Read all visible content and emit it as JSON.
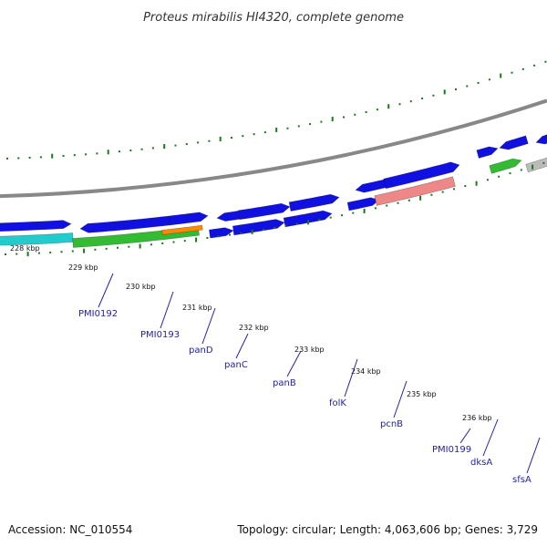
{
  "title": "Proteus mirabilis HI4320, complete genome",
  "footer": {
    "accession": "Accession: NC_010554",
    "summary": "Topology: circular; Length: 4,063,606 bp; Genes: 3,729"
  },
  "ticks": [
    "228 kbp",
    "229 kbp",
    "230 kbp",
    "231 kbp",
    "232 kbp",
    "233 kbp",
    "234 kbp",
    "235 kbp",
    "236 kbp"
  ],
  "genes": [
    "PMI0192",
    "PMI0193",
    "panD",
    "panC",
    "panB",
    "folK",
    "pcnB",
    "PMI0199",
    "dksA",
    "sfsA"
  ],
  "colors": {
    "backbone": "#888888",
    "cds_blue": "#1010e0",
    "cds_cyan": "#22cccc",
    "cds_green": "#33bb33",
    "cds_orange": "#ff8800",
    "cds_pink": "#ee8888",
    "cds_grey": "#bbbbbb",
    "tick_green": "#1a7a1a",
    "label_blue": "#2222aa"
  }
}
